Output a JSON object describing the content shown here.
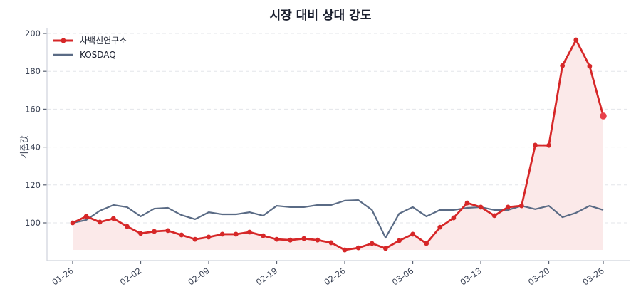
{
  "chart_data": {
    "type": "line",
    "title": "시장 대비 상대 강도",
    "xlabel": "",
    "ylabel": "기준값",
    "ylim": [
      80,
      202
    ],
    "yticks": [
      100,
      120,
      140,
      160,
      180,
      200
    ],
    "xtick_labels": [
      "01-26",
      "02-02",
      "02-09",
      "02-19",
      "02-26",
      "03-06",
      "03-13",
      "03-20",
      "03-26"
    ],
    "xtick_indices": [
      0,
      5,
      10,
      15,
      20,
      25,
      30,
      35,
      39
    ],
    "grid": true,
    "legend_position": "upper left",
    "series": [
      {
        "name": "차백신연구소",
        "color": "#d62728",
        "marker": "circle",
        "fill": true,
        "fill_color": "#fbe9e9",
        "values": [
          100.0,
          103.4,
          100.4,
          102.3,
          98.1,
          94.4,
          95.5,
          95.9,
          93.6,
          91.3,
          92.5,
          94.0,
          94.0,
          95.1,
          93.2,
          91.3,
          90.9,
          91.7,
          90.9,
          89.5,
          85.7,
          86.8,
          89.1,
          86.5,
          90.6,
          94.0,
          89.1,
          97.7,
          102.6,
          110.5,
          108.3,
          103.8,
          108.3,
          109.0,
          141.0,
          140.9,
          183.0,
          196.6,
          182.7,
          156.4
        ]
      },
      {
        "name": "KOSDAQ",
        "color": "#5a6b85",
        "marker": "none",
        "fill": false,
        "values": [
          100.0,
          101.5,
          106.4,
          109.4,
          108.3,
          103.4,
          107.5,
          107.9,
          104.1,
          101.9,
          105.6,
          104.5,
          104.5,
          105.6,
          103.8,
          109.0,
          108.3,
          108.3,
          109.4,
          109.4,
          111.7,
          112.0,
          106.8,
          92.1,
          104.9,
          108.3,
          103.4,
          106.8,
          106.8,
          107.9,
          108.3,
          106.8,
          106.8,
          109.0,
          107.2,
          109.0,
          103.0,
          105.3,
          109.0,
          106.8
        ]
      }
    ]
  },
  "legend": {
    "items": [
      {
        "label": "차백신연구소"
      },
      {
        "label": "KOSDAQ"
      }
    ]
  }
}
